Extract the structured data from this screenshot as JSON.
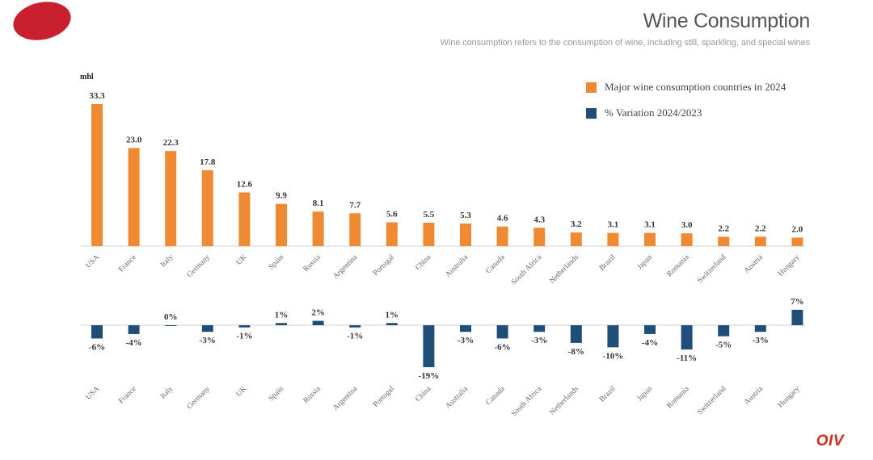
{
  "header": {
    "title": "Wine Consumption",
    "subtitle": "Wine consumption refers to the consumption of wine, including still, sparkling, and special wines"
  },
  "brand": {
    "logo_text": "OIV",
    "accent_color": "#c8202f"
  },
  "chart_data": [
    {
      "type": "bar",
      "unit_label": "mhl",
      "series": [
        {
          "name": "Major wine consumption countries in 2024",
          "color": "#ef8a33"
        }
      ],
      "categories": [
        "USA",
        "France",
        "Italy",
        "Germany",
        "UK",
        "Spain",
        "Russia",
        "Argentina",
        "Portugal",
        "China",
        "Australia",
        "Canada",
        "South Africa",
        "Netherlands",
        "Brazil",
        "Japan",
        "Romania",
        "Switzerland",
        "Austria",
        "Hungary"
      ],
      "values": [
        33.3,
        23.0,
        22.3,
        17.8,
        12.6,
        9.9,
        8.1,
        7.7,
        5.6,
        5.5,
        5.3,
        4.6,
        4.3,
        3.2,
        3.1,
        3.1,
        3.0,
        2.2,
        2.2,
        2.0
      ],
      "value_labels": [
        "33.3",
        "23.0",
        "22.3",
        "17.8",
        "12.6",
        "9.9",
        "8.1",
        "7.7",
        "5.6",
        "5.5",
        "5.3",
        "4.6",
        "4.3",
        "3.2",
        "3.1",
        "3.1",
        "3.0",
        "2.2",
        "2.2",
        "2.0"
      ],
      "legend_position": "top-right",
      "grid": false
    },
    {
      "type": "bar",
      "series": [
        {
          "name": "% Variation 2024/2023",
          "color": "#1f4e79"
        }
      ],
      "categories": [
        "USA",
        "France",
        "Italy",
        "Germany",
        "UK",
        "Spain",
        "Russia",
        "Argentina",
        "Portugal",
        "China",
        "Australia",
        "Canada",
        "South Africa",
        "Netherlands",
        "Brazil",
        "Japan",
        "Romania",
        "Switzerland",
        "Austria",
        "Hungary"
      ],
      "values": [
        -6,
        -4,
        0,
        -3,
        -1,
        1,
        2,
        -1,
        1,
        -19,
        -3,
        -6,
        -3,
        -8,
        -10,
        -4,
        -11,
        -5,
        -3,
        7
      ],
      "value_labels": [
        "-6%",
        "-4%",
        "0%",
        "-3%",
        "-1%",
        "1%",
        "2%",
        "-1%",
        "1%",
        "-19%",
        "-3%",
        "-6%",
        "-3%",
        "-8%",
        "-10%",
        "-4%",
        "-11%",
        "-5%",
        "-3%",
        "7%"
      ],
      "legend_position": "top-right",
      "grid": false
    }
  ]
}
